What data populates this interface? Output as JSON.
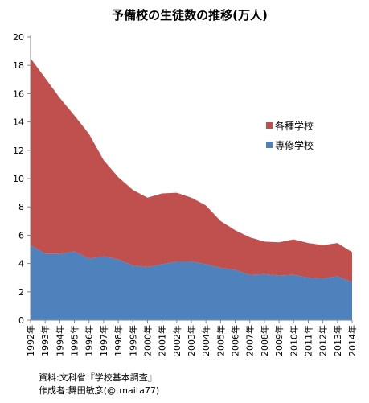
{
  "chart_data": {
    "type": "area",
    "stacked": true,
    "title": "予備校の生徒数の推移(万人)",
    "xlabel": "",
    "ylabel": "",
    "ylim": [
      0,
      20
    ],
    "yticks": [
      0,
      2,
      4,
      6,
      8,
      10,
      12,
      14,
      16,
      18,
      20
    ],
    "grid": false,
    "legend_position": "right",
    "categories": [
      "1992年",
      "1993年",
      "1994年",
      "1995年",
      "1996年",
      "1997年",
      "1998年",
      "1999年",
      "2000年",
      "2001年",
      "2002年",
      "2003年",
      "2004年",
      "2005年",
      "2006年",
      "2007年",
      "2008年",
      "2009年",
      "2010年",
      "2011年",
      "2012年",
      "2013年",
      "2014年"
    ],
    "series": [
      {
        "name": "専修学校",
        "color": "#4f81bd",
        "values": [
          5.3,
          4.7,
          4.7,
          4.85,
          4.35,
          4.5,
          4.3,
          3.85,
          3.75,
          3.95,
          4.15,
          4.15,
          3.95,
          3.7,
          3.55,
          3.2,
          3.25,
          3.15,
          3.2,
          3.0,
          2.95,
          3.1,
          2.7
        ]
      },
      {
        "name": "各種学校",
        "color": "#c0504d",
        "values": [
          13.2,
          12.4,
          11.0,
          9.6,
          8.8,
          6.8,
          5.8,
          5.35,
          4.9,
          5.0,
          4.85,
          4.5,
          4.15,
          3.3,
          2.8,
          2.65,
          2.3,
          2.35,
          2.5,
          2.45,
          2.35,
          2.35,
          2.1
        ]
      }
    ],
    "legend_order": [
      "各種学校",
      "専修学校"
    ]
  },
  "notes": {
    "source": "資料:文科省『学校基本調査』",
    "author": "作成者:舞田敏彦(@tmaita77)"
  }
}
